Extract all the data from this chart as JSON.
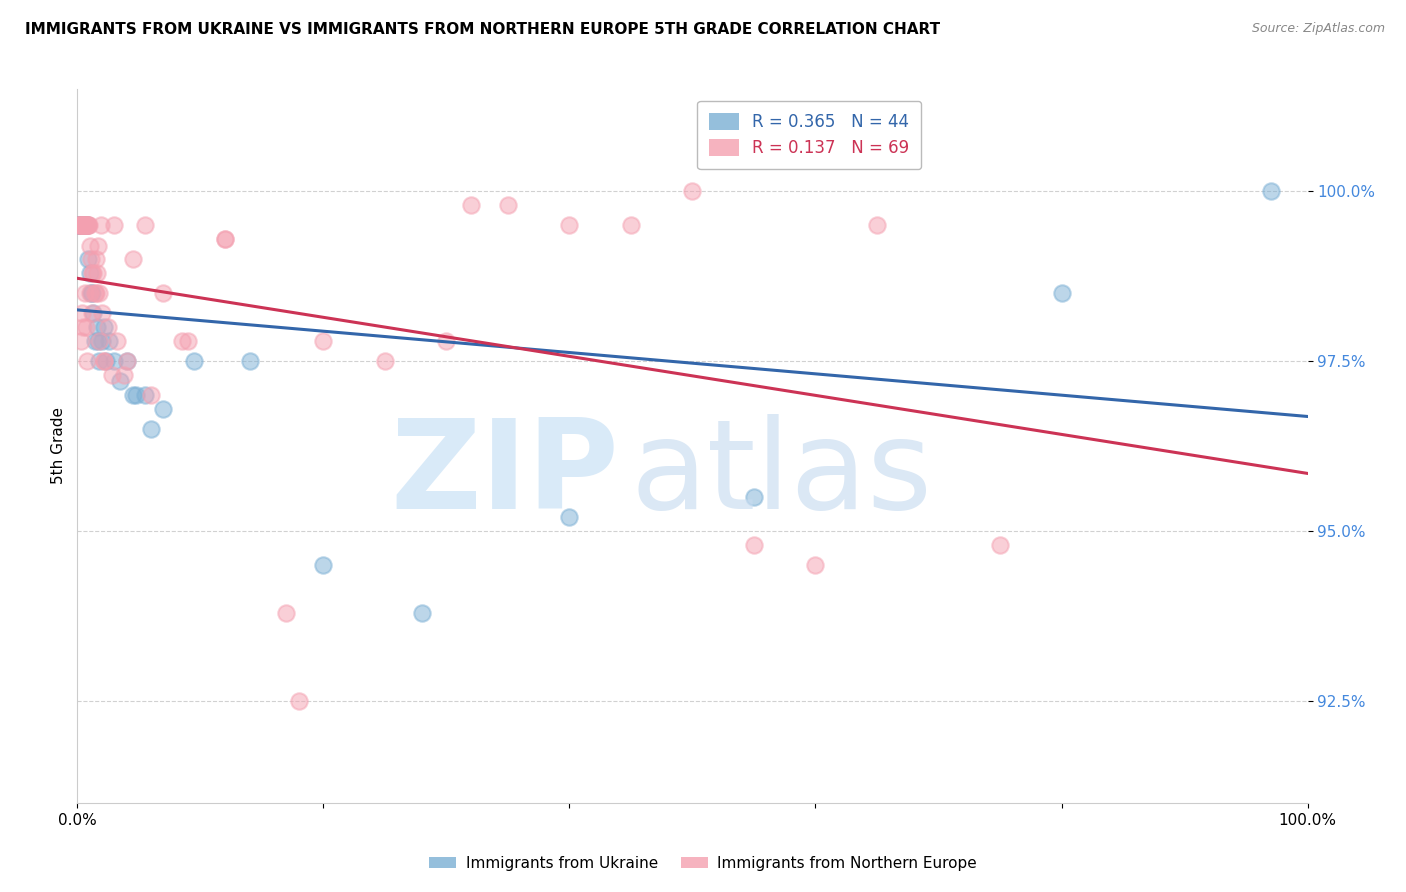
{
  "title": "IMMIGRANTS FROM UKRAINE VS IMMIGRANTS FROM NORTHERN EUROPE 5TH GRADE CORRELATION CHART",
  "source": "Source: ZipAtlas.com",
  "ylabel": "5th Grade",
  "y_ticks": [
    92.5,
    95.0,
    97.5,
    100.0
  ],
  "y_tick_labels": [
    "92.5%",
    "95.0%",
    "97.5%",
    "100.0%"
  ],
  "x_ticks": [
    0,
    20,
    40,
    60,
    80,
    100
  ],
  "x_tick_labels": [
    "0.0%",
    "",
    "",
    "",
    "",
    "100.0%"
  ],
  "x_lim": [
    0.0,
    100.0
  ],
  "y_lim": [
    91.0,
    101.5
  ],
  "legend_r_ukraine": "0.365",
  "legend_n_ukraine": "44",
  "legend_r_northern": "0.137",
  "legend_n_northern": "69",
  "ukraine_color": "#7BAFD4",
  "northern_color": "#F4A0B0",
  "ukraine_line_color": "#3366AA",
  "northern_line_color": "#CC3355",
  "ukraine_x": [
    0.1,
    0.15,
    0.2,
    0.25,
    0.3,
    0.35,
    0.4,
    0.45,
    0.5,
    0.55,
    0.6,
    0.65,
    0.7,
    0.75,
    0.8,
    0.9,
    1.0,
    1.1,
    1.2,
    1.4,
    1.6,
    1.8,
    2.0,
    2.3,
    2.6,
    3.0,
    3.5,
    4.0,
    4.5,
    5.5,
    7.0,
    9.5,
    14.0,
    20.0,
    28.0,
    40.0,
    55.0,
    80.0,
    97.0,
    1.3,
    1.7,
    2.2,
    6.0,
    4.8
  ],
  "ukraine_y": [
    99.5,
    99.5,
    99.5,
    99.5,
    99.5,
    99.5,
    99.5,
    99.5,
    99.5,
    99.5,
    99.5,
    99.5,
    99.5,
    99.5,
    99.5,
    99.0,
    98.8,
    98.5,
    98.5,
    97.8,
    98.0,
    97.5,
    97.8,
    97.5,
    97.8,
    97.5,
    97.2,
    97.5,
    97.0,
    97.0,
    96.8,
    97.5,
    97.5,
    94.5,
    93.8,
    95.2,
    95.5,
    98.5,
    100.0,
    98.2,
    97.8,
    98.0,
    96.5,
    97.0
  ],
  "northern_x": [
    0.1,
    0.15,
    0.2,
    0.25,
    0.3,
    0.35,
    0.4,
    0.45,
    0.5,
    0.55,
    0.6,
    0.65,
    0.7,
    0.75,
    0.8,
    0.85,
    0.9,
    0.95,
    1.0,
    1.1,
    1.2,
    1.3,
    1.4,
    1.5,
    1.6,
    1.7,
    1.8,
    1.9,
    2.0,
    2.2,
    2.5,
    2.8,
    3.2,
    3.8,
    4.5,
    5.5,
    7.0,
    9.0,
    12.0,
    18.0,
    25.0,
    35.0,
    50.0,
    65.0,
    0.3,
    0.4,
    0.5,
    0.6,
    0.7,
    0.8,
    1.0,
    1.2,
    1.5,
    1.8,
    2.2,
    3.0,
    4.0,
    6.0,
    8.5,
    17.0,
    30.0,
    45.0,
    60.0,
    75.0,
    32.0,
    55.0,
    12.0,
    20.0,
    40.0
  ],
  "northern_y": [
    99.5,
    99.5,
    99.5,
    99.5,
    99.5,
    99.5,
    99.5,
    99.5,
    99.5,
    99.5,
    99.5,
    99.5,
    99.5,
    99.5,
    99.5,
    99.5,
    99.5,
    99.5,
    99.2,
    99.0,
    98.8,
    98.8,
    98.5,
    99.0,
    98.8,
    99.2,
    98.5,
    99.5,
    98.2,
    97.5,
    98.0,
    97.3,
    97.8,
    97.3,
    99.0,
    99.5,
    98.5,
    97.8,
    99.3,
    92.5,
    97.5,
    99.8,
    100.0,
    99.5,
    97.8,
    98.2,
    98.0,
    98.5,
    98.0,
    97.5,
    98.5,
    98.2,
    98.5,
    97.8,
    97.5,
    99.5,
    97.5,
    97.0,
    97.8,
    93.8,
    97.8,
    99.5,
    94.5,
    94.8,
    99.8,
    94.8,
    99.3,
    97.8,
    99.5
  ],
  "trendline_ukraine_x0": 97.7,
  "trendline_ukraine_y0": 98.3,
  "trendline_northern_x0": 99.2,
  "trendline_northern_y0": 99.8
}
